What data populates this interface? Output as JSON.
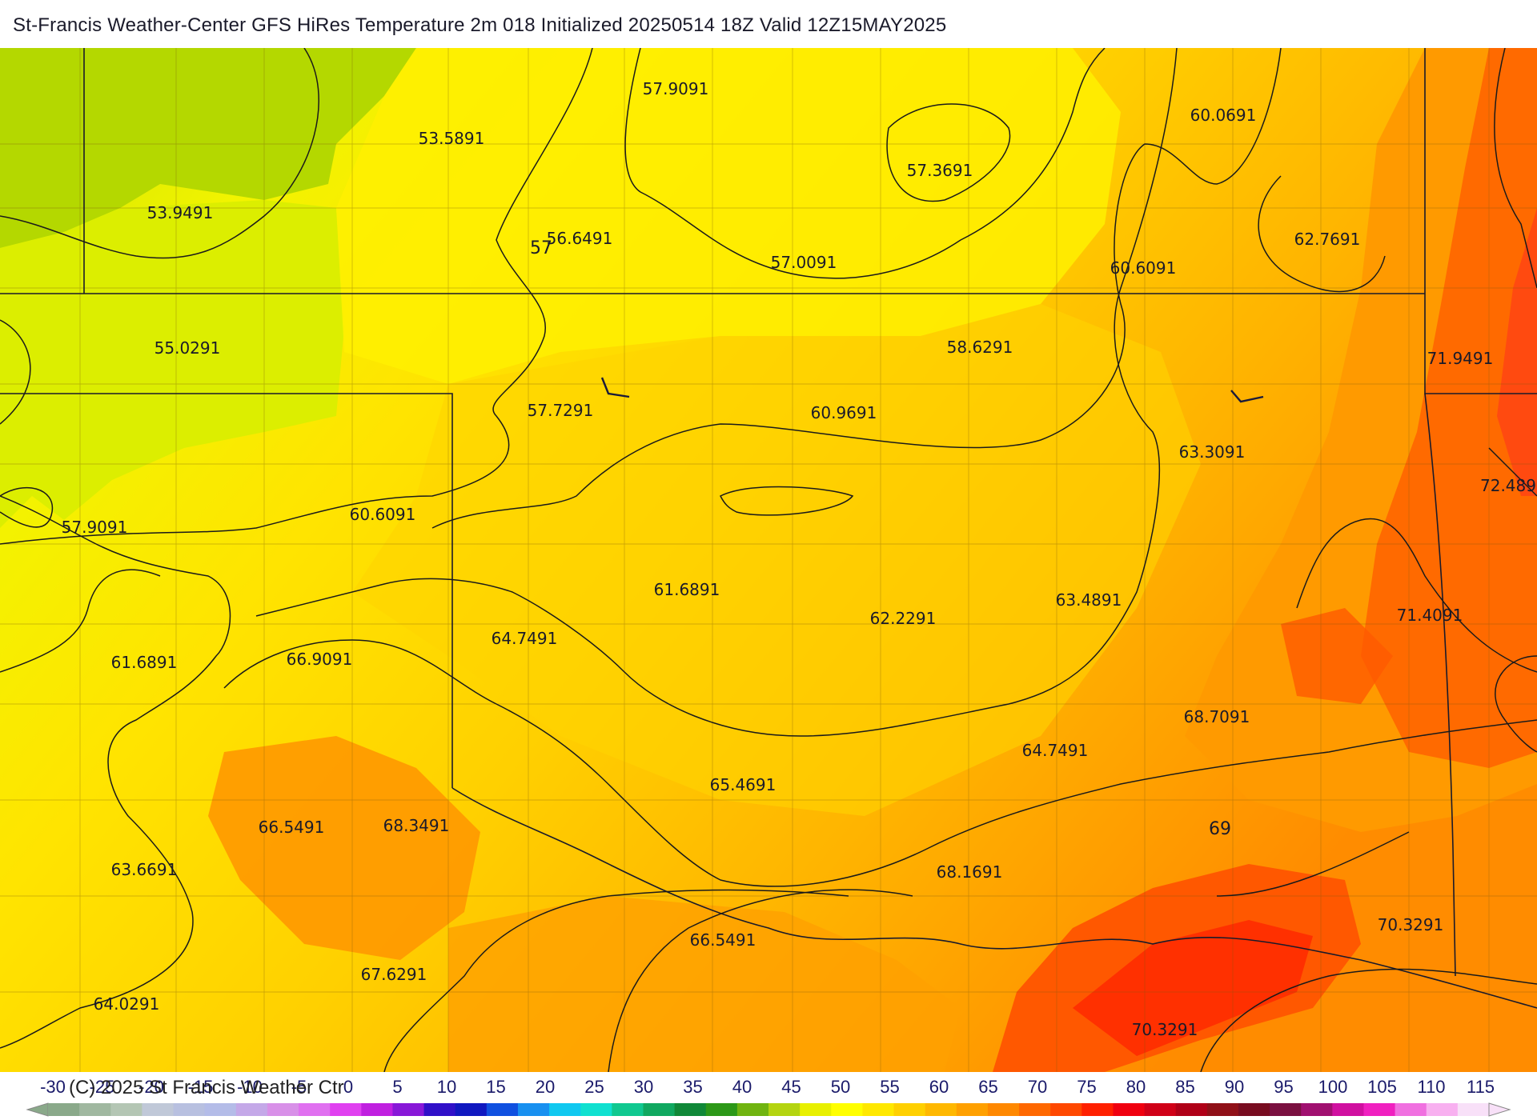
{
  "title": "St-Francis Weather-Center GFS HiRes Temperature 2m  018 Initialized 20250514 18Z Valid 12Z15MAY2025",
  "copyright": "(C) 2025 St Francis Weather Ctr",
  "colorbar": {
    "labels": [
      "-30",
      "-25",
      "-20",
      "-15",
      "-10",
      "-5",
      "0",
      "5",
      "10",
      "15",
      "20",
      "25",
      "30",
      "35",
      "40",
      "45",
      "50",
      "55",
      "60",
      "65",
      "70",
      "75",
      "80",
      "85",
      "90",
      "95",
      "100",
      "105",
      "110",
      "115"
    ],
    "colors": [
      "#8aa98a",
      "#a0b8a0",
      "#b4c6b4",
      "#c0c8d8",
      "#b8c0e0",
      "#b4bce8",
      "#c4a8e8",
      "#d890e8",
      "#e070f0",
      "#e040f0",
      "#c020e0",
      "#8818d8",
      "#3010c8",
      "#1018c0",
      "#1050e0",
      "#1890f0",
      "#10c8f0",
      "#10e0d0",
      "#10c890",
      "#10a860",
      "#108838",
      "#2c9818",
      "#70b410",
      "#b4d410",
      "#e8f000",
      "#ffff00",
      "#ffe800",
      "#ffd000",
      "#ffb800",
      "#ffa000",
      "#ff8800",
      "#ff6800",
      "#ff4800",
      "#ff2000",
      "#f00010",
      "#d00018",
      "#b00018",
      "#901018",
      "#780c20",
      "#7a1040",
      "#a01070",
      "#d010a0",
      "#f020c0",
      "#f070e0",
      "#f8b0f0",
      "#f8e0f8"
    ]
  },
  "contour_labels": [
    "57",
    "69"
  ],
  "station_values": [
    "57.9091",
    "53.5891",
    "60.0691",
    "57.3691",
    "53.9491",
    "56.6491",
    "57.0091",
    "60.6091",
    "62.7691",
    "55.0291",
    "58.6291",
    "71.9491",
    "57.7291",
    "60.9691",
    "63.3091",
    "72.489",
    "57.9091",
    "60.6091",
    "61.6891",
    "62.2291",
    "63.4891",
    "71.4091",
    "64.7491",
    "61.6891",
    "66.9091",
    "68.7091",
    "64.7491",
    "65.4691",
    "66.5491",
    "68.3491",
    "69",
    "63.6691",
    "68.1691",
    "70.3291",
    "66.5491",
    "67.6291",
    "64.0291",
    "70.3291"
  ]
}
